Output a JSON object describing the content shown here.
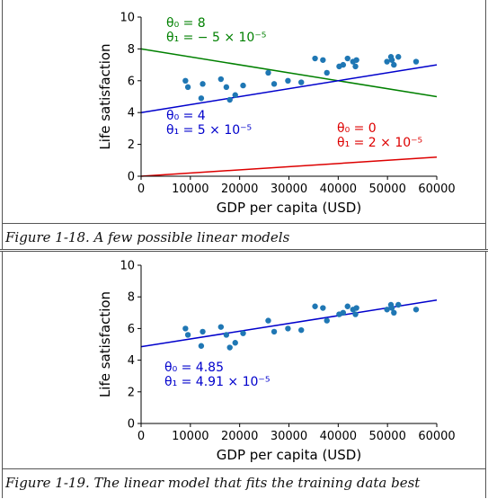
{
  "chart_data": [
    {
      "type": "scatter",
      "xlabel": "GDP per capita (USD)",
      "ylabel": "Life satisfaction",
      "xlim": [
        0,
        60000
      ],
      "ylim": [
        0,
        10
      ],
      "xticks": [
        "0",
        "10000",
        "20000",
        "30000",
        "40000",
        "50000",
        "60000"
      ],
      "yticks": [
        "0",
        "2",
        "4",
        "6",
        "8",
        "10"
      ],
      "grid": false,
      "points": [
        {
          "x": 9000,
          "y": 6.0
        },
        {
          "x": 9500,
          "y": 5.6
        },
        {
          "x": 12200,
          "y": 4.9
        },
        {
          "x": 12500,
          "y": 5.8
        },
        {
          "x": 16200,
          "y": 6.1
        },
        {
          "x": 17300,
          "y": 5.6
        },
        {
          "x": 18000,
          "y": 4.8
        },
        {
          "x": 19100,
          "y": 5.1
        },
        {
          "x": 20700,
          "y": 5.7
        },
        {
          "x": 25800,
          "y": 6.5
        },
        {
          "x": 27000,
          "y": 5.8
        },
        {
          "x": 29800,
          "y": 6.0
        },
        {
          "x": 32500,
          "y": 5.9
        },
        {
          "x": 35300,
          "y": 7.4
        },
        {
          "x": 36900,
          "y": 7.3
        },
        {
          "x": 37700,
          "y": 6.5
        },
        {
          "x": 40200,
          "y": 6.9
        },
        {
          "x": 41000,
          "y": 7.0
        },
        {
          "x": 41900,
          "y": 7.4
        },
        {
          "x": 43000,
          "y": 7.2
        },
        {
          "x": 43500,
          "y": 6.9
        },
        {
          "x": 43700,
          "y": 7.3
        },
        {
          "x": 49900,
          "y": 7.2
        },
        {
          "x": 50700,
          "y": 7.5
        },
        {
          "x": 50900,
          "y": 7.3
        },
        {
          "x": 51300,
          "y": 7.0
        },
        {
          "x": 52200,
          "y": 7.5
        },
        {
          "x": 55800,
          "y": 7.2
        }
      ],
      "lines": [
        {
          "theta0": 8,
          "theta1": -5e-05,
          "color": "#008000",
          "label_line1": "θ₀ = 8",
          "label_line2": "θ₁ = − 5 × 10⁻⁵"
        },
        {
          "theta0": 4,
          "theta1": 5e-05,
          "color": "#0000cc",
          "label_line1": "θ₀ = 4",
          "label_line2": "θ₁ = 5 × 10⁻⁵"
        },
        {
          "theta0": 0,
          "theta1": 2e-05,
          "color": "#dd0000",
          "label_line1": "θ₀ = 0",
          "label_line2": "θ₁ = 2 × 10⁻⁵"
        }
      ]
    },
    {
      "type": "scatter",
      "xlabel": "GDP per capita (USD)",
      "ylabel": "Life satisfaction",
      "xlim": [
        0,
        60000
      ],
      "ylim": [
        0,
        10
      ],
      "xticks": [
        "0",
        "10000",
        "20000",
        "30000",
        "40000",
        "50000",
        "60000"
      ],
      "yticks": [
        "0",
        "2",
        "4",
        "6",
        "8",
        "10"
      ],
      "grid": false,
      "points": [
        {
          "x": 9000,
          "y": 6.0
        },
        {
          "x": 9500,
          "y": 5.6
        },
        {
          "x": 12200,
          "y": 4.9
        },
        {
          "x": 12500,
          "y": 5.8
        },
        {
          "x": 16200,
          "y": 6.1
        },
        {
          "x": 17300,
          "y": 5.6
        },
        {
          "x": 18000,
          "y": 4.8
        },
        {
          "x": 19100,
          "y": 5.1
        },
        {
          "x": 20700,
          "y": 5.7
        },
        {
          "x": 25800,
          "y": 6.5
        },
        {
          "x": 27000,
          "y": 5.8
        },
        {
          "x": 29800,
          "y": 6.0
        },
        {
          "x": 32500,
          "y": 5.9
        },
        {
          "x": 35300,
          "y": 7.4
        },
        {
          "x": 36900,
          "y": 7.3
        },
        {
          "x": 37700,
          "y": 6.5
        },
        {
          "x": 40200,
          "y": 6.9
        },
        {
          "x": 41000,
          "y": 7.0
        },
        {
          "x": 41900,
          "y": 7.4
        },
        {
          "x": 43000,
          "y": 7.2
        },
        {
          "x": 43500,
          "y": 6.9
        },
        {
          "x": 43700,
          "y": 7.3
        },
        {
          "x": 49900,
          "y": 7.2
        },
        {
          "x": 50700,
          "y": 7.5
        },
        {
          "x": 50900,
          "y": 7.3
        },
        {
          "x": 51300,
          "y": 7.0
        },
        {
          "x": 52200,
          "y": 7.5
        },
        {
          "x": 55800,
          "y": 7.2
        }
      ],
      "lines": [
        {
          "theta0": 4.85,
          "theta1": 4.91e-05,
          "color": "#0000cc",
          "label_line1": "θ₀ = 4.85",
          "label_line2": "θ₁ = 4.91 × 10⁻⁵"
        }
      ]
    }
  ],
  "captions": {
    "fig1": "Figure 1-18. A few possible linear models",
    "fig2": "Figure 1-19. The linear model that fits the training data best"
  },
  "colors": {
    "points": "#1f77b4"
  }
}
